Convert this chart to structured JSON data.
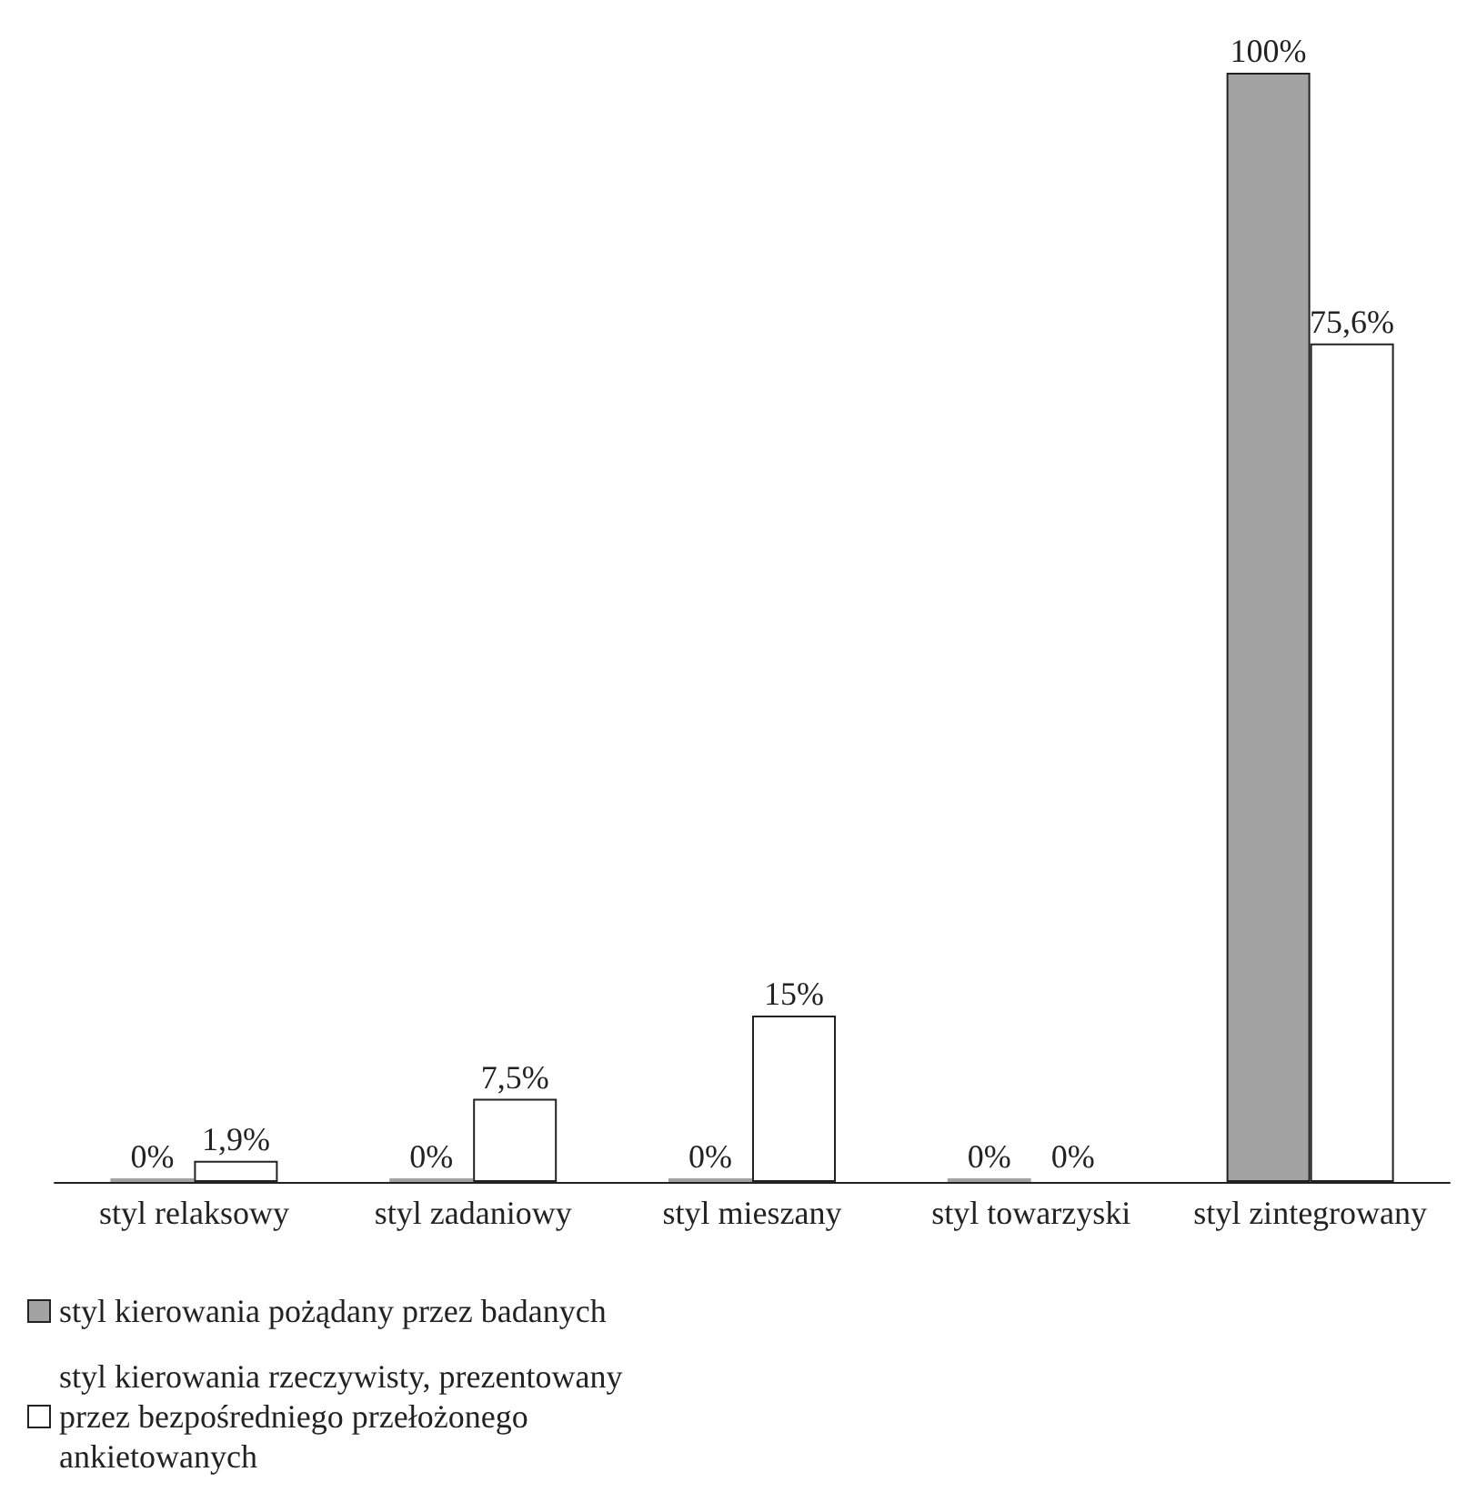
{
  "chart_data": {
    "type": "bar",
    "categories": [
      "styl relaksowy",
      "styl zadaniowy",
      "styl mieszany",
      "styl towarzyski",
      "styl zintegrowany"
    ],
    "series": [
      {
        "name": "styl kierowania pożądany przez badanych",
        "color": "#a3a3a3",
        "values": [
          0,
          0,
          0,
          0,
          100
        ],
        "value_labels": [
          "0%",
          "0%",
          "0%",
          "0%",
          "100%"
        ]
      },
      {
        "name": "styl kierowania rzeczywisty, prezentowany przez bezpośredniego przełożonego ankietowanych",
        "color": "#ffffff",
        "values": [
          1.9,
          7.5,
          15,
          0,
          75.6
        ],
        "value_labels": [
          "1,9%",
          "7,5%",
          "15%",
          "0%",
          "75,6%"
        ]
      }
    ],
    "legend": "bottom left",
    "grid": false
  }
}
